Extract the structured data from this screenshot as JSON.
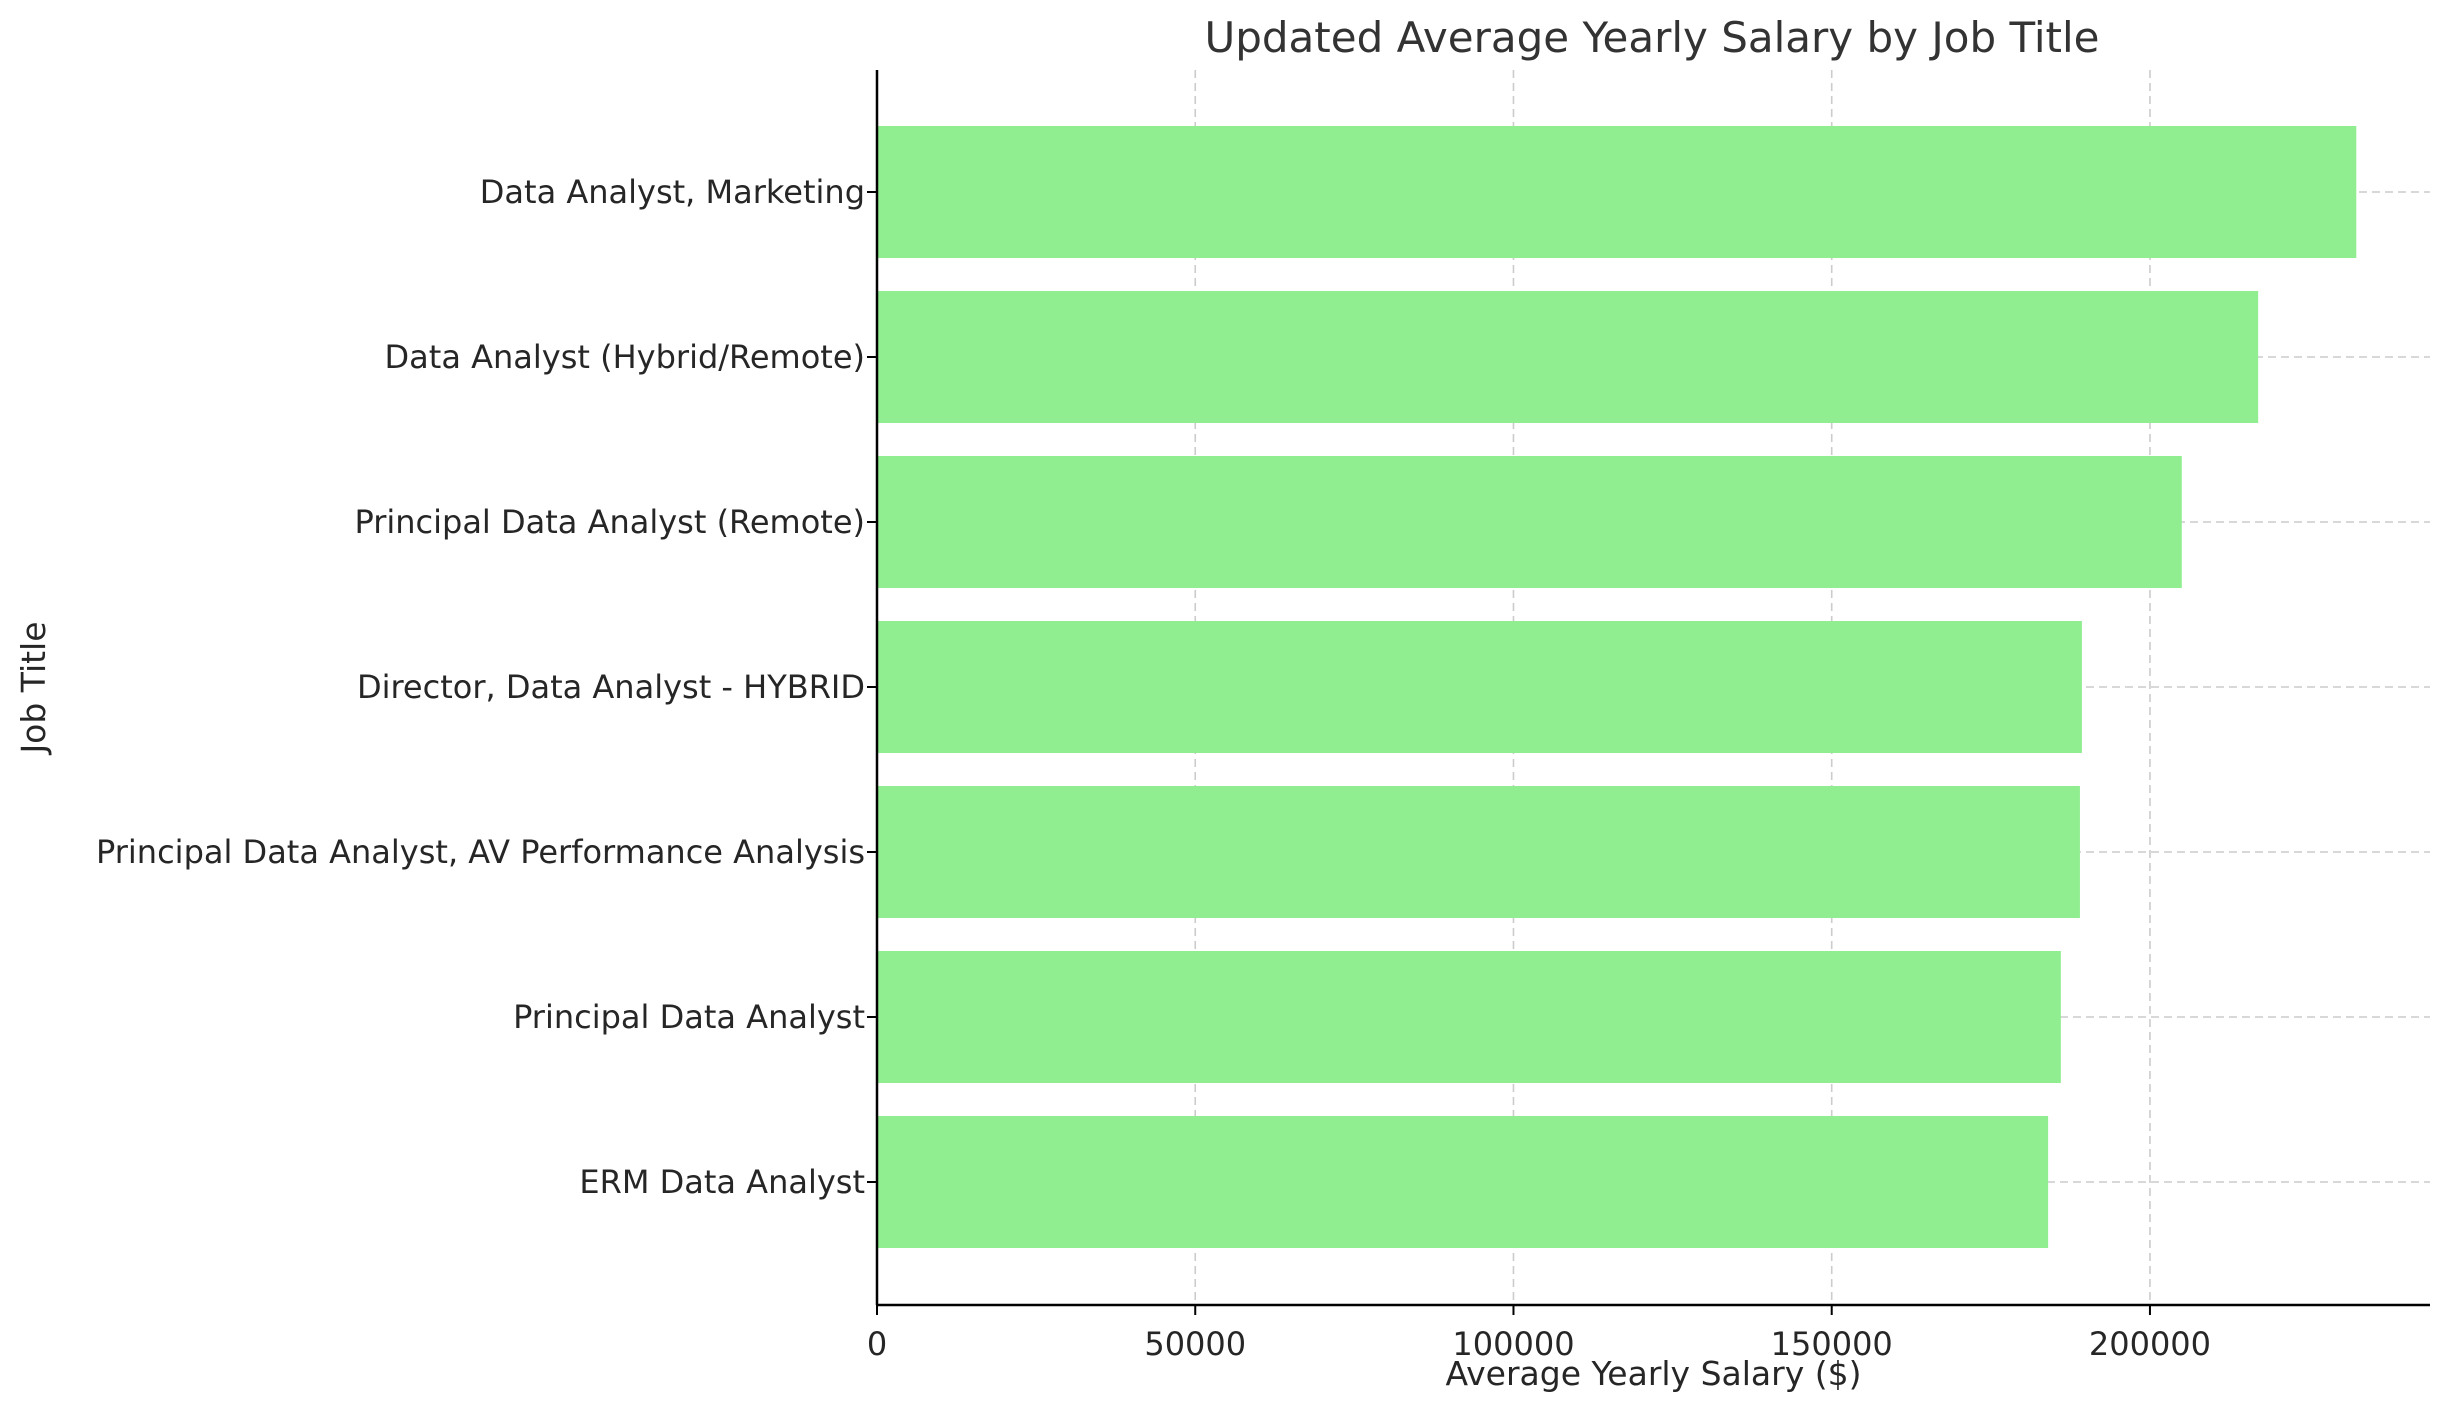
{
  "chart_data": {
    "type": "bar",
    "orientation": "horizontal",
    "title": "Updated Average Yearly Salary by Job Title",
    "xlabel": "Average Yearly Salary ($)",
    "ylabel": "Job Title",
    "categories": [
      "Data Analyst, Marketing",
      "Data Analyst (Hybrid/Remote)",
      "Principal Data Analyst (Remote)",
      "Director, Data Analyst - HYBRID",
      "Principal Data Analyst, AV Performance Analysis",
      "Principal Data Analyst",
      "ERM Data Analyst"
    ],
    "values": [
      232423,
      217000,
      205000,
      189309,
      189000,
      186000,
      184000
    ],
    "xlim": [
      0,
      244000
    ],
    "xticks": [
      0,
      50000,
      100000,
      150000,
      200000
    ],
    "grid": true,
    "bar_color": "#90ee90"
  }
}
